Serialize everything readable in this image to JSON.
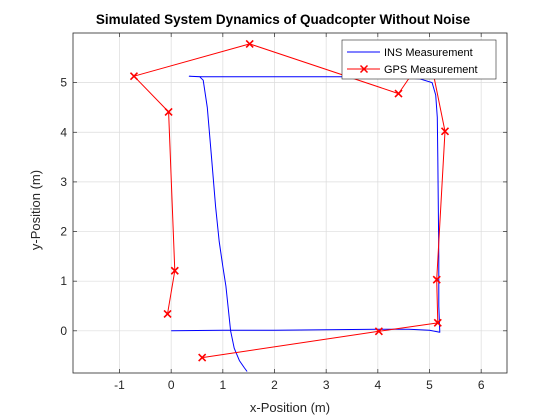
{
  "chart_data": {
    "type": "line",
    "title": "Simulated System Dynamics of Quadcopter Without Noise",
    "xlabel": "x-Position (m)",
    "ylabel": "y-Position (m)",
    "xlim": [
      -1.9,
      6.5
    ],
    "ylim": [
      -0.85,
      6.0
    ],
    "xticks": [
      -1,
      0,
      1,
      2,
      3,
      4,
      5,
      6
    ],
    "yticks": [
      0,
      1,
      2,
      3,
      4,
      5
    ],
    "xtick_labels": [
      "-1",
      "0",
      "1",
      "2",
      "3",
      "4",
      "5",
      "6"
    ],
    "ytick_labels": [
      "0",
      "1",
      "2",
      "3",
      "4",
      "5"
    ],
    "grid": true,
    "legend_position": "top-right",
    "series": [
      {
        "name": "INS Measurement",
        "color": "#0000ff",
        "marker": "none",
        "points": [
          [
            0.0,
            0.0
          ],
          [
            1.0,
            0.01
          ],
          [
            2.0,
            0.01
          ],
          [
            3.0,
            0.02
          ],
          [
            4.0,
            0.03
          ],
          [
            4.6,
            0.03
          ],
          [
            5.0,
            0.01
          ],
          [
            5.2,
            -0.03
          ],
          [
            5.18,
            0.5
          ],
          [
            5.18,
            1.5
          ],
          [
            5.17,
            2.5
          ],
          [
            5.16,
            3.5
          ],
          [
            5.15,
            4.3
          ],
          [
            5.12,
            4.75
          ],
          [
            5.05,
            5.0
          ],
          [
            4.8,
            5.08
          ],
          [
            4.0,
            5.12
          ],
          [
            3.0,
            5.12
          ],
          [
            2.0,
            5.12
          ],
          [
            0.6,
            5.12
          ],
          [
            0.35,
            5.13
          ],
          [
            0.55,
            5.12
          ],
          [
            0.62,
            5.05
          ],
          [
            0.7,
            4.5
          ],
          [
            0.78,
            3.5
          ],
          [
            0.86,
            2.5
          ],
          [
            0.93,
            1.8
          ],
          [
            1.0,
            1.3
          ],
          [
            1.06,
            0.9
          ],
          [
            1.1,
            0.5
          ],
          [
            1.15,
            0.0
          ],
          [
            1.22,
            -0.35
          ],
          [
            1.32,
            -0.6
          ],
          [
            1.42,
            -0.75
          ],
          [
            1.47,
            -0.82
          ]
        ]
      },
      {
        "name": "GPS Measurement",
        "color": "#ff0000",
        "marker": "x",
        "points": [
          [
            -0.07,
            0.34
          ],
          [
            0.07,
            1.21
          ],
          [
            -0.05,
            4.41
          ],
          [
            -0.72,
            5.13
          ],
          [
            1.52,
            5.78
          ],
          [
            4.4,
            4.78
          ],
          [
            4.98,
            5.66
          ],
          [
            5.3,
            4.02
          ],
          [
            5.14,
            1.03
          ],
          [
            5.16,
            0.16
          ],
          [
            4.02,
            -0.01
          ],
          [
            0.6,
            -0.54
          ]
        ]
      }
    ]
  }
}
